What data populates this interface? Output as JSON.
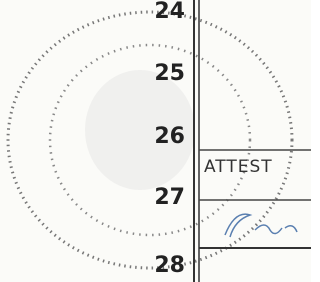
{
  "line_numbers": [
    "24",
    "25",
    "26",
    "27",
    "28"
  ],
  "attest_label": "ATTEST"
}
